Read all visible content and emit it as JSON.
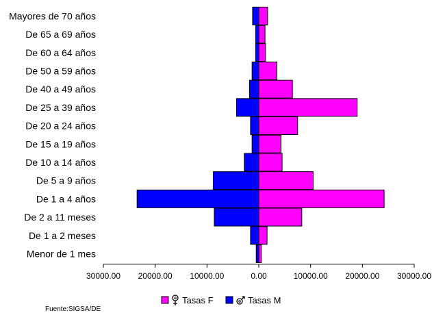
{
  "chart_data": {
    "type": "bar",
    "orientation": "horizontal",
    "layout": "population-pyramid",
    "categories": [
      "Mayores de 70 años",
      "De 65 a 69 años",
      "De 60 a 64 años",
      "De 50 a 59 años",
      "De 40 a 49 años",
      "De 25 a 39 años",
      "De 20 a 24 años",
      "De 15 a 19 años",
      "De 10 a 14 años",
      "De 5 a 9 años",
      "De 1 a 4 años",
      "De 2 a 11 meses",
      "De 1 a 2 meses",
      "Menor de 1 mes"
    ],
    "series": [
      {
        "name": "Tasas F",
        "color": "#ff00ff",
        "symbol": "female-symbol",
        "values": [
          1700,
          1200,
          1300,
          3500,
          6500,
          19000,
          7500,
          4300,
          4500,
          10500,
          24200,
          8300,
          1600,
          500
        ]
      },
      {
        "name": "Tasas M",
        "color": "#0000ff",
        "symbol": "male-symbol",
        "values": [
          1200,
          600,
          600,
          1300,
          1800,
          4300,
          1600,
          1300,
          2800,
          8800,
          23500,
          8600,
          1600,
          500
        ]
      }
    ],
    "xlim": [
      -30000,
      30000
    ],
    "x_ticks": [
      "30000.00",
      "20000.00",
      "10000.00",
      "0.00",
      "10000.00",
      "20000.00",
      "30000.00"
    ],
    "grid": false,
    "legend_position": "bottom-center"
  },
  "source_note": "Fuente:SIGSA/DE"
}
